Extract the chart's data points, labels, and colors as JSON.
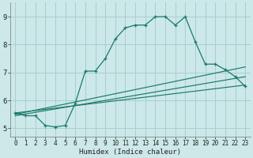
{
  "xlabel": "Humidex (Indice chaleur)",
  "bg_color": "#cce8e8",
  "grid_color": "#aacece",
  "line_color": "#1a7a6a",
  "xlim": [
    -0.5,
    23.5
  ],
  "ylim": [
    4.7,
    9.5
  ],
  "xticks": [
    0,
    1,
    2,
    3,
    4,
    5,
    6,
    7,
    8,
    9,
    10,
    11,
    12,
    13,
    14,
    15,
    16,
    17,
    18,
    19,
    20,
    21,
    22,
    23
  ],
  "yticks": [
    5,
    6,
    7,
    8,
    9
  ],
  "main_x": [
    0,
    1,
    2,
    3,
    4,
    5,
    6,
    7,
    8,
    9,
    10,
    11,
    12,
    13,
    14,
    15,
    16,
    17,
    18,
    19,
    20,
    21,
    22,
    23
  ],
  "main_y": [
    5.55,
    5.45,
    5.45,
    5.1,
    5.05,
    5.1,
    5.9,
    7.05,
    7.05,
    7.5,
    8.2,
    8.6,
    8.7,
    8.7,
    9.0,
    9.0,
    8.7,
    9.0,
    8.1,
    7.3,
    7.3,
    7.1,
    6.85,
    6.5
  ],
  "trend1_x": [
    0,
    23
  ],
  "trend1_y": [
    5.55,
    6.55
  ],
  "trend2_x": [
    0,
    23
  ],
  "trend2_y": [
    5.5,
    7.2
  ],
  "trend3_x": [
    0,
    23
  ],
  "trend3_y": [
    5.45,
    6.85
  ]
}
